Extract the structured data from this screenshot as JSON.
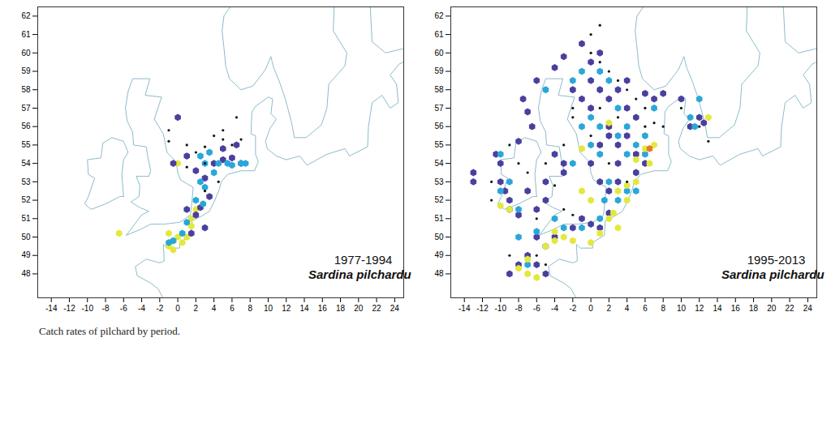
{
  "caption": "Catch rates of pilchard by period.",
  "coastline": [
    [
      [
        -5.7,
        50.1
      ],
      [
        -4.2,
        50.4
      ],
      [
        -3,
        50.7
      ],
      [
        -1.5,
        50.7
      ],
      [
        0.2,
        50.8
      ],
      [
        1.4,
        51.2
      ],
      [
        1.6,
        52.1
      ],
      [
        1.7,
        52.7
      ],
      [
        0.3,
        53.1
      ],
      [
        0,
        53.5
      ],
      [
        -0.2,
        54.1
      ],
      [
        -1.2,
        54.6
      ],
      [
        -1.6,
        55.6
      ],
      [
        -2.1,
        56
      ],
      [
        -2.6,
        56.4
      ],
      [
        -2,
        57.3
      ],
      [
        -1.8,
        57.6
      ],
      [
        -3.6,
        57.7
      ],
      [
        -3.1,
        58.6
      ],
      [
        -5,
        58.6
      ],
      [
        -5.5,
        57.9
      ],
      [
        -5.8,
        57
      ],
      [
        -5.6,
        56.3
      ],
      [
        -5,
        55.7
      ],
      [
        -4.9,
        55
      ],
      [
        -3.5,
        54.9
      ],
      [
        -3.3,
        54.3
      ],
      [
        -3,
        53.6
      ],
      [
        -3.2,
        53.3
      ],
      [
        -4.6,
        53.3
      ],
      [
        -4.2,
        52.8
      ],
      [
        -4.3,
        52.2
      ],
      [
        -5.2,
        51.9
      ],
      [
        -4.2,
        51.6
      ],
      [
        -3.2,
        51.4
      ],
      [
        -4,
        51.2
      ],
      [
        -5.7,
        50.1
      ]
    ],
    [
      [
        -6,
        52.2
      ],
      [
        -6.2,
        53.4
      ],
      [
        -6,
        54.2
      ],
      [
        -5.5,
        54.6
      ],
      [
        -6,
        55.2
      ],
      [
        -7.3,
        55.4
      ],
      [
        -8.3,
        55.1
      ],
      [
        -8.5,
        54.3
      ],
      [
        -10,
        54.2
      ],
      [
        -9.9,
        53.4
      ],
      [
        -9.2,
        53.2
      ],
      [
        -9.9,
        52.2
      ],
      [
        -10.3,
        51.8
      ],
      [
        -9.6,
        51.5
      ],
      [
        -8,
        51.8
      ],
      [
        -6.4,
        52.2
      ],
      [
        -6,
        52.2
      ]
    ],
    [
      [
        -1.2,
        46.3
      ],
      [
        -2.2,
        47.2
      ],
      [
        -3,
        47.5
      ],
      [
        -4.5,
        47.9
      ],
      [
        -4.7,
        48.4
      ],
      [
        -3.5,
        48.8
      ],
      [
        -2,
        48.6
      ],
      [
        -1.5,
        48.7
      ],
      [
        -1.6,
        49.6
      ],
      [
        -1.2,
        49.4
      ],
      [
        0.2,
        49.4
      ],
      [
        0.2,
        49.7
      ],
      [
        1.5,
        50.1
      ],
      [
        1.6,
        50.9
      ],
      [
        2.5,
        51.1
      ],
      [
        3.5,
        51.4
      ],
      [
        4.1,
        52
      ],
      [
        4.6,
        52.6
      ],
      [
        4.8,
        53
      ],
      [
        5.5,
        53.4
      ],
      [
        7,
        53.6
      ],
      [
        8.5,
        53.6
      ],
      [
        8.9,
        54.1
      ],
      [
        8.6,
        54.5
      ],
      [
        8.6,
        55.5
      ],
      [
        8.1,
        55.6
      ],
      [
        8.2,
        56.8
      ],
      [
        8.6,
        57.1
      ],
      [
        10,
        57.6
      ],
      [
        10.5,
        57.5
      ],
      [
        10.3,
        56.7
      ],
      [
        10.9,
        56.4
      ],
      [
        10.2,
        55.9
      ],
      [
        9.7,
        55.2
      ],
      [
        9.9,
        54.8
      ],
      [
        10.9,
        54.4
      ],
      [
        12,
        54.2
      ],
      [
        13.5,
        54.4
      ],
      [
        14.3,
        53.9
      ],
      [
        16.5,
        54.5
      ],
      [
        18.5,
        54.8
      ],
      [
        19,
        54.4
      ],
      [
        21,
        54.9
      ],
      [
        21.1,
        56
      ],
      [
        21.5,
        57.3
      ],
      [
        22.6,
        57.7
      ],
      [
        23.5,
        57
      ],
      [
        24.4,
        57.3
      ],
      [
        24.2,
        58.3
      ],
      [
        23.5,
        58.8
      ],
      [
        24.5,
        59.4
      ],
      [
        25.5,
        59.6
      ]
    ],
    [
      [
        21.3,
        62.5
      ],
      [
        21.5,
        60.6
      ],
      [
        23,
        60
      ],
      [
        25.5,
        60.3
      ]
    ],
    [
      [
        17.3,
        62.5
      ],
      [
        17.2,
        61.2
      ],
      [
        18.7,
        60
      ],
      [
        18.5,
        59.3
      ],
      [
        16.7,
        58.3
      ],
      [
        16.5,
        57
      ],
      [
        15.9,
        56.1
      ],
      [
        14.2,
        55.4
      ],
      [
        12.9,
        55.4
      ],
      [
        12.6,
        56.2
      ],
      [
        11.9,
        57.5
      ],
      [
        11.2,
        58.5
      ],
      [
        10.6,
        59.2
      ],
      [
        10.3,
        59.8
      ],
      [
        9.7,
        59.1
      ],
      [
        8.3,
        58.2
      ],
      [
        7,
        58
      ],
      [
        5.7,
        58.6
      ],
      [
        5.3,
        59.3
      ],
      [
        5.1,
        60.3
      ],
      [
        4.9,
        61.2
      ],
      [
        5.1,
        62
      ],
      [
        5.8,
        62.5
      ]
    ]
  ],
  "chart_data": [
    {
      "type": "scatter",
      "title": "1977-1994",
      "subtitle": "Sardina pilchardus",
      "xlim": [
        -15.5,
        25
      ],
      "ylim": [
        46.7,
        62.5
      ],
      "xticks": [
        -14,
        -12,
        -10,
        -8,
        -6,
        -4,
        -2,
        0,
        2,
        4,
        6,
        8,
        10,
        12,
        14,
        16,
        18,
        20,
        22,
        24
      ],
      "yticks": [
        48,
        49,
        50,
        51,
        52,
        53,
        54,
        55,
        56,
        57,
        58,
        59,
        60,
        61,
        62
      ],
      "grid": false,
      "series": [
        {
          "color": "#e3e83c",
          "marker": "circle",
          "x": [
            -1,
            -0.5,
            0,
            0.5,
            -0.5,
            1,
            1.5,
            2,
            1.5,
            0,
            -6.5,
            -1
          ],
          "y": [
            49.5,
            49.8,
            50,
            49.7,
            49.3,
            50,
            50.6,
            51.5,
            51,
            54,
            50.2,
            50.2
          ]
        },
        {
          "color": "#4b3f9e",
          "marker": "circle",
          "x": [
            0,
            -0.5,
            1,
            2,
            3,
            3.5,
            4,
            5,
            5,
            6,
            6.5,
            7,
            2,
            3,
            1.5,
            1,
            2.5
          ],
          "y": [
            56.5,
            54,
            54.4,
            53.6,
            53.2,
            52.2,
            54,
            54.8,
            54.2,
            54.3,
            55,
            54,
            51.2,
            50.5,
            50.2,
            51.5,
            51.6
          ]
        },
        {
          "color": "#2aa7d8",
          "marker": "circle",
          "x": [
            2.5,
            3.5,
            3,
            4,
            4.5,
            5.5,
            6,
            7,
            7.5,
            2.5,
            3,
            2,
            2.8,
            1,
            0.5,
            -0.5,
            -1
          ],
          "y": [
            54.4,
            54.6,
            54,
            53.5,
            54,
            54,
            53.9,
            54,
            54,
            53,
            52.7,
            52,
            51.8,
            50.8,
            50.2,
            49.8,
            49.7
          ]
        },
        {
          "color": "#111111",
          "marker": "dot",
          "x": [
            -1,
            -1,
            1,
            2,
            3,
            4,
            5,
            5,
            6,
            6.5,
            7,
            3,
            4.5,
            1,
            3
          ],
          "y": [
            55.8,
            55.2,
            55,
            54.6,
            54.9,
            55.5,
            55.8,
            55.3,
            55,
            56.5,
            55.3,
            54,
            53,
            53.8,
            52.5
          ]
        }
      ]
    },
    {
      "type": "scatter",
      "title": "1995-2013",
      "subtitle": "Sardina pilchardus",
      "xlim": [
        -15.5,
        25
      ],
      "ylim": [
        46.7,
        62.5
      ],
      "xticks": [
        -14,
        -12,
        -10,
        -8,
        -6,
        -4,
        -2,
        0,
        2,
        4,
        6,
        8,
        10,
        12,
        14,
        16,
        18,
        20,
        22,
        24
      ],
      "yticks": [
        48,
        49,
        50,
        51,
        52,
        53,
        54,
        55,
        56,
        57,
        58,
        59,
        60,
        61,
        62
      ],
      "grid": false,
      "series": [
        {
          "color": "#4b3f9e",
          "marker": "circle",
          "x": [
            -10,
            -10,
            -9.5,
            -9,
            -9,
            -8,
            -6,
            -5,
            -7,
            -10.5,
            -13,
            -8,
            -6.5,
            -7,
            -7.5,
            -6,
            -4,
            -3,
            -1,
            -2,
            -1,
            0,
            0,
            0,
            1,
            1,
            2,
            2,
            3,
            4,
            4,
            5,
            6,
            7,
            8,
            1,
            2,
            3,
            4,
            3,
            5,
            1,
            2,
            3,
            5,
            6,
            0,
            -3,
            -4,
            -3,
            -5,
            -6,
            -5,
            -7,
            -4,
            -2,
            0,
            2,
            -6,
            -8,
            -9,
            -5,
            11,
            12,
            12.5,
            10,
            -1,
            1,
            -13
          ],
          "y": [
            54,
            53,
            52.5,
            52,
            51.5,
            51.2,
            51.5,
            52,
            52.5,
            54.5,
            53,
            55.2,
            56,
            56.8,
            57.5,
            58.5,
            59.2,
            59.8,
            60.5,
            58,
            57.5,
            57,
            58.5,
            59.5,
            58,
            60,
            56,
            57.5,
            58,
            58.5,
            57,
            56.5,
            57.8,
            57.5,
            57.8,
            55,
            55.5,
            55,
            55.5,
            54,
            54.5,
            53,
            52.5,
            53,
            53.5,
            54,
            54,
            54,
            54.5,
            53.5,
            53,
            50,
            49.5,
            49,
            50,
            50.5,
            50.7,
            51.3,
            48.5,
            48.5,
            48,
            48,
            56,
            56.5,
            56.2,
            57.5,
            51,
            50.5,
            53.5
          ]
        },
        {
          "color": "#2aa7d8",
          "marker": "circle",
          "x": [
            -10,
            -9,
            -10,
            -8,
            -6,
            -4,
            -3,
            -1,
            1,
            1.5,
            2,
            3,
            4,
            3,
            1,
            0,
            -1,
            2,
            3,
            4,
            5,
            6,
            6,
            4,
            1,
            0,
            -2,
            -1,
            1,
            -5,
            11,
            11.5,
            12,
            7,
            -7,
            -8,
            -2,
            5
          ],
          "y": [
            54.5,
            53,
            52.5,
            51.5,
            50.3,
            51,
            50.5,
            50.5,
            51,
            52,
            53,
            52,
            52.5,
            55.5,
            56,
            56.5,
            56,
            58.5,
            57,
            56,
            55,
            55.5,
            54.5,
            54.5,
            54.5,
            55,
            58.5,
            59,
            59,
            58,
            56.5,
            56,
            57.5,
            57,
            48.5,
            50,
            54,
            52.5
          ]
        },
        {
          "color": "#e3e83c",
          "marker": "circle",
          "x": [
            -8,
            -7,
            -6,
            -7,
            -5,
            -4,
            -3,
            -4,
            -2,
            0,
            1,
            2,
            2.5,
            3,
            4,
            5,
            4,
            5,
            6,
            7,
            6.5,
            0,
            -1,
            -9,
            -10,
            3,
            -1,
            2,
            13
          ],
          "y": [
            48.3,
            48,
            47.8,
            48.8,
            49.5,
            49.8,
            50,
            50.3,
            49.8,
            49.7,
            50.2,
            51,
            51.3,
            52.5,
            52.8,
            53,
            52,
            54.2,
            54.8,
            55,
            54,
            52,
            52.5,
            51.5,
            51.7,
            50.5,
            54.8,
            56.2,
            56.5
          ]
        },
        {
          "color": "#111111",
          "marker": "dot",
          "x": [
            -9,
            -8,
            -11,
            -7,
            -6,
            -4,
            -3,
            -2,
            -2,
            0,
            0,
            1,
            1,
            2,
            3,
            4,
            5,
            6,
            6,
            7,
            8,
            3,
            1,
            0,
            4,
            2,
            -5,
            -3,
            -2,
            -9,
            -6,
            -5,
            12,
            13,
            10,
            -11
          ],
          "y": [
            55,
            54,
            52,
            53.5,
            51,
            52.8,
            55,
            56.5,
            57,
            60,
            61,
            61.5,
            59.5,
            59,
            58.5,
            58,
            57.5,
            57,
            56,
            56.2,
            56,
            56.5,
            57,
            55.5,
            53,
            54,
            54,
            51.5,
            51.2,
            49,
            49,
            48.5,
            56,
            55.2,
            57,
            53
          ]
        },
        {
          "color": "#e8782a",
          "marker": "circle",
          "x": [
            6.5
          ],
          "y": [
            54.8
          ]
        }
      ]
    }
  ]
}
